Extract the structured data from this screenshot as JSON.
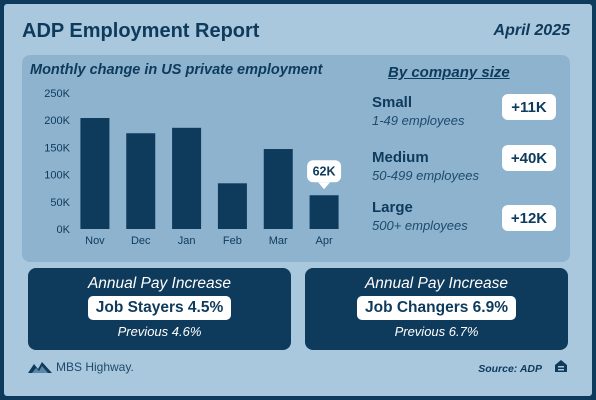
{
  "header": {
    "title": "ADP Employment Report",
    "date": "April 2025"
  },
  "chart_data": {
    "type": "bar",
    "title": "Monthly change in US private employment",
    "categories": [
      "Nov",
      "Dec",
      "Jan",
      "Feb",
      "Mar",
      "Apr"
    ],
    "values": [
      204000,
      176000,
      186000,
      84000,
      147000,
      62000
    ],
    "ylim": [
      0,
      250000
    ],
    "yticks": [
      "0K",
      "50K",
      "100K",
      "150K",
      "200K",
      "250K"
    ],
    "grid": false,
    "highlight": {
      "label": "62K",
      "category": "Apr"
    },
    "bar_color": "#0e3a5c"
  },
  "company_size": {
    "heading": "By company size",
    "items": [
      {
        "name": "Small",
        "desc": "1-49 employees",
        "value": "+11K"
      },
      {
        "name": "Medium",
        "desc": "50-499 employees",
        "value": "+40K"
      },
      {
        "name": "Large",
        "desc": "500+ employees",
        "value": "+12K"
      }
    ]
  },
  "cards": [
    {
      "label": "Annual Pay Increase",
      "value": "Job Stayers 4.5%",
      "previous": "Previous 4.6%"
    },
    {
      "label": "Annual Pay Increase",
      "value": "Job Changers 6.9%",
      "previous": "Previous 6.7%"
    }
  ],
  "footer": {
    "brand": "MBS Highway.",
    "source": "Source: ADP"
  },
  "colors": {
    "navy": "#0e3a5c",
    "frame": "#a9c7dd",
    "panel": "#8db3cf"
  }
}
